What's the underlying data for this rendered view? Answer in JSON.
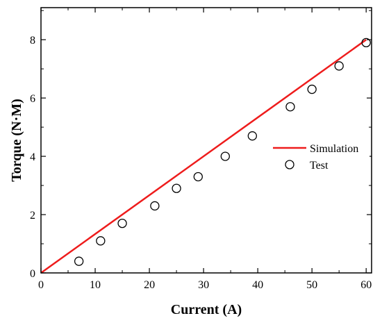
{
  "chart_data": {
    "type": "scatter",
    "title": "",
    "xlabel": "Current (A)",
    "ylabel": "Torque (N·M)",
    "xlim": [
      0,
      61
    ],
    "ylim": [
      0,
      9.1
    ],
    "x_ticks": [
      "0",
      "10",
      "20",
      "30",
      "40",
      "50",
      "60"
    ],
    "y_ticks": [
      "0",
      "2",
      "4",
      "6",
      "8"
    ],
    "legend_position": "right",
    "series": [
      {
        "name": "Simulation",
        "kind": "line",
        "color": "#ee1c1c",
        "x": [
          0,
          60
        ],
        "y": [
          0,
          8.0
        ]
      },
      {
        "name": "Test",
        "kind": "marker-open-circle",
        "color": "#000000",
        "x": [
          7,
          11,
          15,
          21,
          25,
          29,
          34,
          39,
          46,
          50,
          55,
          60
        ],
        "y": [
          0.4,
          1.1,
          1.7,
          2.3,
          2.9,
          3.3,
          4.0,
          4.7,
          5.7,
          6.3,
          7.1,
          7.9
        ]
      }
    ]
  }
}
